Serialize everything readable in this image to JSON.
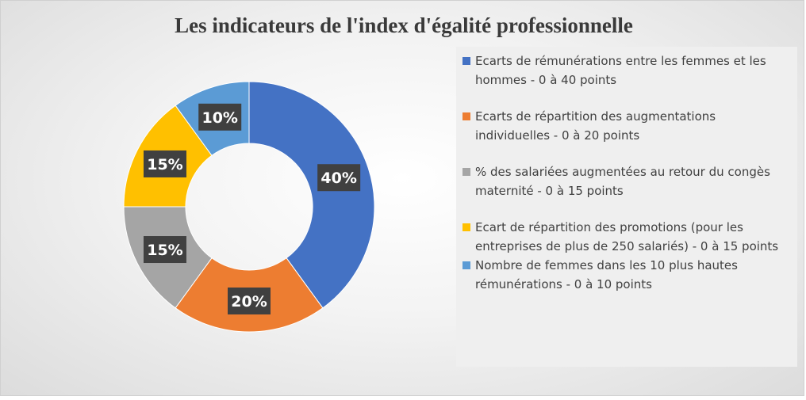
{
  "chart_data": {
    "type": "pie",
    "title": "Les indicateurs de l'index d'égalité professionnelle",
    "categories": [
      "Ecarts de rémunérations entre les femmes et les hommes - 0 à 40 points",
      "Ecarts de répartition des augmentations individuelles - 0 à 20 points",
      "% des salariées augmentées au retour du congès maternité - 0 à 15 points",
      "Ecart de répartition des promotions (pour les entreprises de plus de 250 salariés) - 0 à 15 points",
      "Nombre de femmes dans les 10 plus hautes rémunérations - 0 à 10 points"
    ],
    "values": [
      40,
      20,
      15,
      15,
      10
    ],
    "data_labels": [
      "40%",
      "20%",
      "15%",
      "15%",
      "10%"
    ],
    "colors": [
      "#4472c4",
      "#ed7d31",
      "#a5a5a5",
      "#ffc000",
      "#5b9bd5"
    ],
    "legend_position": "right",
    "donut": true
  }
}
